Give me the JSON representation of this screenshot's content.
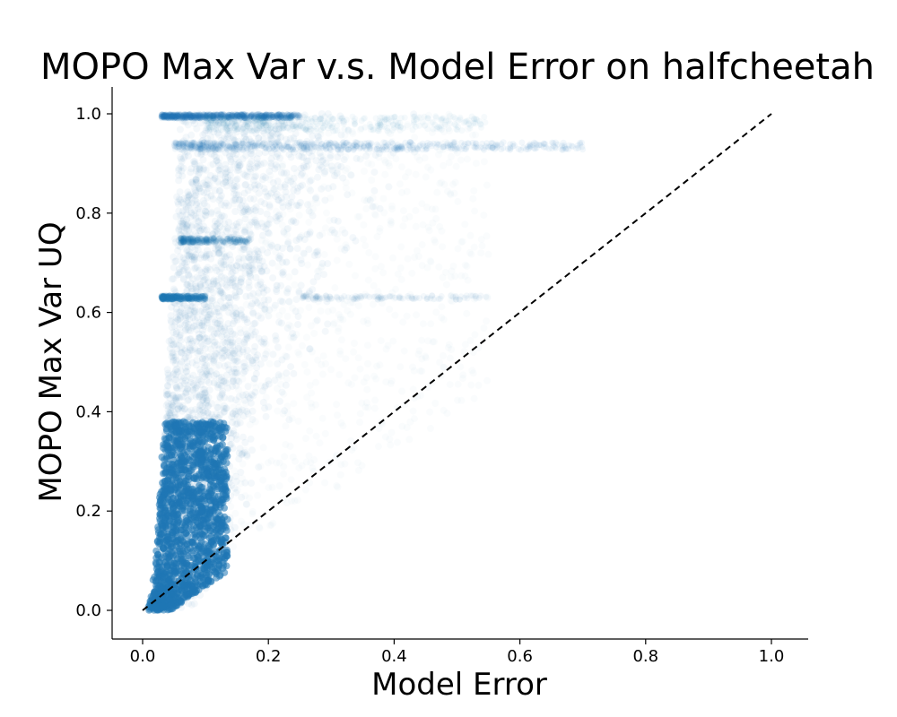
{
  "chart_data": {
    "type": "scatter",
    "title": "MOPO Max Var v.s. Model Error on halfcheetah",
    "xlabel": "Model Error",
    "ylabel": "MOPO Max Var UQ",
    "xlim": [
      -0.05,
      1.055
    ],
    "ylim": [
      -0.055,
      1.055
    ],
    "xticks": [
      "0.0",
      "0.2",
      "0.4",
      "0.6",
      "0.8",
      "1.0"
    ],
    "yticks": [
      "0.0",
      "0.2",
      "0.4",
      "0.6",
      "0.8",
      "1.0"
    ],
    "grid": false,
    "legend": "none",
    "point_color": "#1f77b4",
    "reference_line": {
      "x": [
        0.0,
        1.0
      ],
      "y": [
        0.0,
        1.0
      ],
      "style": "dashed",
      "color": "#000000"
    },
    "series": [
      {
        "description_bands": [
          {
            "x_range": [
              0.03,
              0.25
            ],
            "y": 0.995,
            "density": "medium"
          },
          {
            "x_range": [
              0.05,
              0.7
            ],
            "y": 0.935,
            "density": "light"
          },
          {
            "x_range": [
              0.06,
              0.17
            ],
            "y": 0.745,
            "density": "light"
          },
          {
            "x_range": [
              0.03,
              0.1
            ],
            "y": 0.63,
            "density": "medium"
          },
          {
            "x_range": [
              0.25,
              0.55
            ],
            "y": 0.63,
            "density": "light"
          },
          {
            "x_range": [
              0.03,
              0.13
            ],
            "y_range": [
              0.0,
              0.38
            ],
            "density": "dense"
          }
        ]
      }
    ]
  }
}
